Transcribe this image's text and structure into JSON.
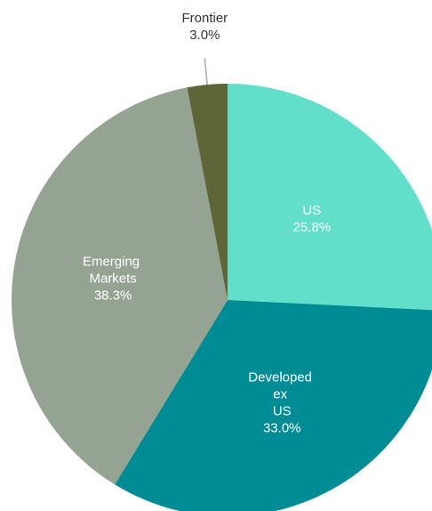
{
  "chart_data": {
    "type": "pie",
    "categories": [
      "US",
      "Developed ex US",
      "Emerging Markets",
      "Frontier"
    ],
    "values": [
      25.8,
      33.0,
      38.3,
      3.0
    ],
    "value_labels": [
      "25.8%",
      "33.0%",
      "38.3%",
      "3.0%"
    ],
    "colors": [
      "#62dfca",
      "#008c95",
      "#95a393",
      "#5e6637"
    ]
  }
}
